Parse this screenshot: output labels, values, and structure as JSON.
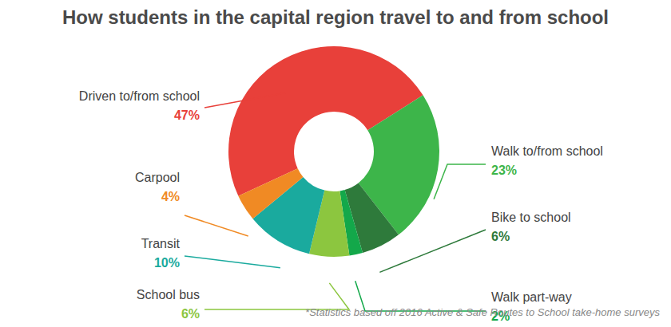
{
  "chart_data": {
    "type": "pie",
    "title": "How students in the capital region travel to and from school",
    "categories": [
      "Driven to/from school",
      "Walk to/from school",
      "Bike to school",
      "Walk part-way",
      "School bus",
      "Transit",
      "Carpool"
    ],
    "values": [
      47,
      23,
      6,
      2,
      6,
      10,
      4
    ],
    "value_labels": [
      "47%",
      "23%",
      "6%",
      "2%",
      "6%",
      "10%",
      "4%"
    ],
    "colors": [
      "#e8403a",
      "#3db54a",
      "#2e7a3b",
      "#13a84a",
      "#8cc63f",
      "#1aaa9e",
      "#f08a24"
    ],
    "data_labels": true,
    "annotation": "*Statistics based off 2016 Active & Safe Routes to School take-home surveys"
  }
}
